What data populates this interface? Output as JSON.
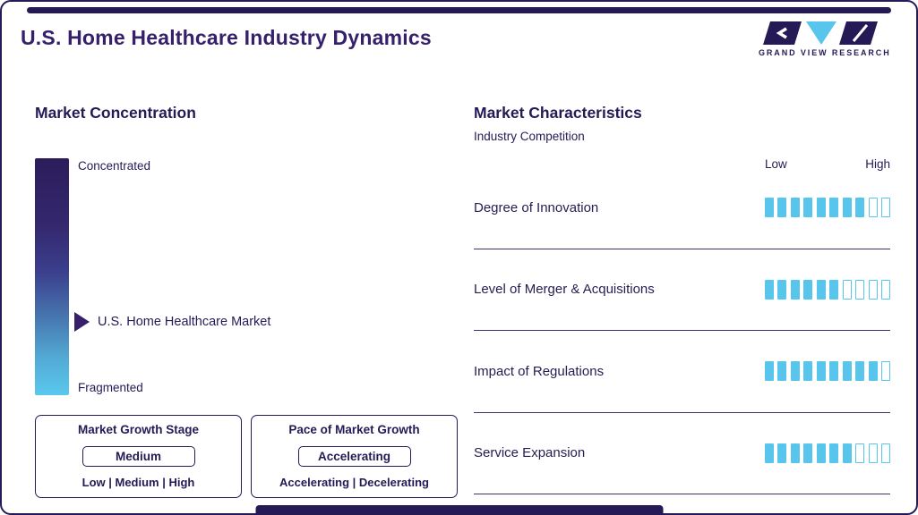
{
  "colors": {
    "navy": "#251a56",
    "purple": "#36206b",
    "blue": "#58c6ec",
    "divider": "#3c3470"
  },
  "header": {
    "title": "U.S. Home Healthcare Industry Dynamics",
    "logo_text": "GRAND VIEW RESEARCH"
  },
  "concentration": {
    "heading": "Market Concentration",
    "top_label": "Concentrated",
    "bottom_label": "Fragmented",
    "marker_label": "U.S. Home Healthcare Market",
    "marker_position_pct": 69,
    "growth_stage": {
      "title": "Market Growth Stage",
      "value": "Medium",
      "options": "Low | Medium | High"
    },
    "growth_pace": {
      "title": "Pace of Market Growth",
      "value": "Accelerating",
      "options": "Accelerating | Decelerating"
    }
  },
  "characteristics": {
    "heading": "Market Characteristics",
    "subtitle": "Industry Competition",
    "low_label": "Low",
    "high_label": "High",
    "total_segments": 10,
    "rows": [
      {
        "label": "Degree of Innovation",
        "filled": 8
      },
      {
        "label": "Level of Merger & Acquisitions",
        "filled": 6
      },
      {
        "label": "Impact of Regulations",
        "filled": 9
      },
      {
        "label": "Service Expansion",
        "filled": 7
      }
    ]
  },
  "chart_data": {
    "type": "bar",
    "title": "Market Characteristics — Industry Competition",
    "categories": [
      "Degree of Innovation",
      "Level of Merger & Acquisitions",
      "Impact of Regulations",
      "Service Expansion"
    ],
    "values": [
      8,
      6,
      9,
      7
    ],
    "xlabel": "",
    "ylabel": "",
    "xlim": [
      0,
      10
    ],
    "scale_labels": [
      "Low",
      "High"
    ],
    "legend": "none",
    "companion_scale": {
      "title": "Market Concentration",
      "axis": [
        "Concentrated",
        "Fragmented"
      ],
      "marker_label": "U.S. Home Healthcare Market",
      "marker_position_pct_from_concentrated": 69
    },
    "callouts": {
      "market_growth_stage": {
        "value": "Medium",
        "options": [
          "Low",
          "Medium",
          "High"
        ]
      },
      "pace_of_market_growth": {
        "value": "Accelerating",
        "options": [
          "Accelerating",
          "Decelerating"
        ]
      }
    }
  }
}
